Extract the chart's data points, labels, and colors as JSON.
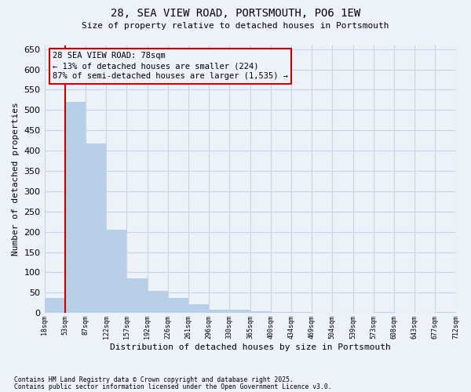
{
  "title_line1": "28, SEA VIEW ROAD, PORTSMOUTH, PO6 1EW",
  "title_line2": "Size of property relative to detached houses in Portsmouth",
  "xlabel": "Distribution of detached houses by size in Portsmouth",
  "ylabel": "Number of detached properties",
  "bar_values": [
    37,
    520,
    417,
    205,
    85,
    55,
    37,
    21,
    9,
    9,
    5,
    2,
    2,
    1,
    1,
    0,
    3,
    0,
    0,
    2
  ],
  "categories": [
    "18sqm",
    "53sqm",
    "87sqm",
    "122sqm",
    "157sqm",
    "192sqm",
    "226sqm",
    "261sqm",
    "296sqm",
    "330sqm",
    "365sqm",
    "400sqm",
    "434sqm",
    "469sqm",
    "504sqm",
    "539sqm",
    "573sqm",
    "608sqm",
    "643sqm",
    "677sqm",
    "712sqm"
  ],
  "bar_color": "#b8cfe8",
  "grid_color": "#c8d4e8",
  "background_color": "#edf1f8",
  "vline_color": "#cc0000",
  "vline_x": 0.5,
  "annotation_text": "28 SEA VIEW ROAD: 78sqm\n← 13% of detached houses are smaller (224)\n87% of semi-detached houses are larger (1,535) →",
  "annotation_box_edgecolor": "#cc0000",
  "ylim_max": 660,
  "yticks": [
    0,
    50,
    100,
    150,
    200,
    250,
    300,
    350,
    400,
    450,
    500,
    550,
    600,
    650
  ],
  "footnote1": "Contains HM Land Registry data © Crown copyright and database right 2025.",
  "footnote2": "Contains public sector information licensed under the Open Government Licence v3.0."
}
